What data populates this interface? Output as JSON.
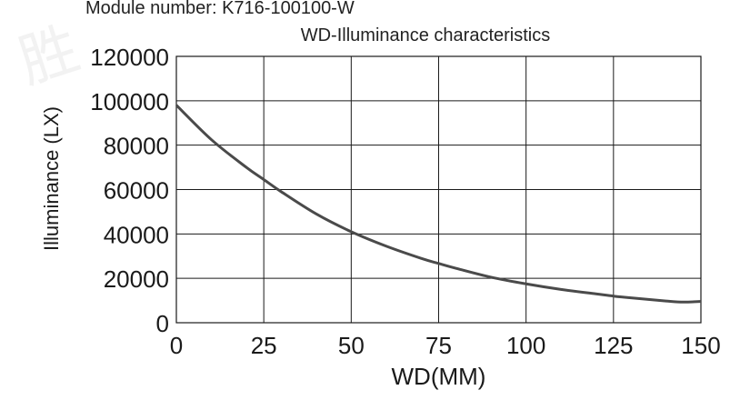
{
  "header": {
    "module_label": "Module number: K716-100100-W"
  },
  "watermark": {
    "glyph": "胜"
  },
  "chart_data": {
    "type": "line",
    "title": "WD-Illuminance characteristics",
    "xlabel": "WD(MM)",
    "ylabel": "Illuminance (LX)",
    "xlim": [
      0,
      150
    ],
    "ylim": [
      0,
      120000
    ],
    "x_ticks": [
      "0",
      "25",
      "50",
      "75",
      "100",
      "125",
      "150"
    ],
    "y_ticks": [
      "0",
      "20000",
      "40000",
      "60000",
      "80000",
      "100000",
      "120000"
    ],
    "grid": true,
    "line_color": "#4a4a4a",
    "series": [
      {
        "x": [
          0,
          10,
          20,
          25,
          30,
          40,
          50,
          60,
          70,
          75,
          80,
          90,
          100,
          110,
          120,
          125,
          130,
          140,
          145,
          150
        ],
        "y": [
          98000,
          82500,
          70000,
          64500,
          59000,
          49000,
          41000,
          34500,
          29000,
          26700,
          24500,
          20500,
          17500,
          15000,
          13000,
          12000,
          11200,
          9800,
          9300,
          9600
        ]
      }
    ]
  }
}
